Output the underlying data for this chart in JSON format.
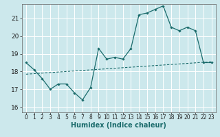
{
  "title": "",
  "xlabel": "Humidex (Indice chaleur)",
  "ylabel": "",
  "bg_color": "#cce8ec",
  "grid_color": "#ffffff",
  "line_color": "#1a6b6b",
  "xlim": [
    -0.5,
    23.5
  ],
  "ylim": [
    15.7,
    21.8
  ],
  "yticks": [
    16,
    17,
    18,
    19,
    20,
    21
  ],
  "xticks": [
    0,
    1,
    2,
    3,
    4,
    5,
    6,
    7,
    8,
    9,
    10,
    11,
    12,
    13,
    14,
    15,
    16,
    17,
    18,
    19,
    20,
    21,
    22,
    23
  ],
  "data_line": [
    [
      0,
      18.5
    ],
    [
      1,
      18.1
    ],
    [
      2,
      17.6
    ],
    [
      3,
      17.0
    ],
    [
      4,
      17.3
    ],
    [
      5,
      17.3
    ],
    [
      6,
      16.8
    ],
    [
      7,
      16.4
    ],
    [
      8,
      17.1
    ],
    [
      9,
      19.3
    ],
    [
      10,
      18.7
    ],
    [
      11,
      18.8
    ],
    [
      12,
      18.7
    ],
    [
      13,
      19.3
    ],
    [
      14,
      21.2
    ],
    [
      15,
      21.3
    ],
    [
      16,
      21.5
    ],
    [
      17,
      21.7
    ],
    [
      18,
      20.5
    ],
    [
      19,
      20.3
    ],
    [
      20,
      20.5
    ],
    [
      21,
      20.3
    ],
    [
      22,
      18.5
    ],
    [
      23,
      18.5
    ]
  ],
  "trend_line": [
    [
      0,
      17.85
    ],
    [
      23,
      18.55
    ]
  ],
  "xlabel_color": "#1a6b6b",
  "xlabel_fontsize": 7.0,
  "tick_fontsize": 5.5,
  "ytick_fontsize": 6.5
}
